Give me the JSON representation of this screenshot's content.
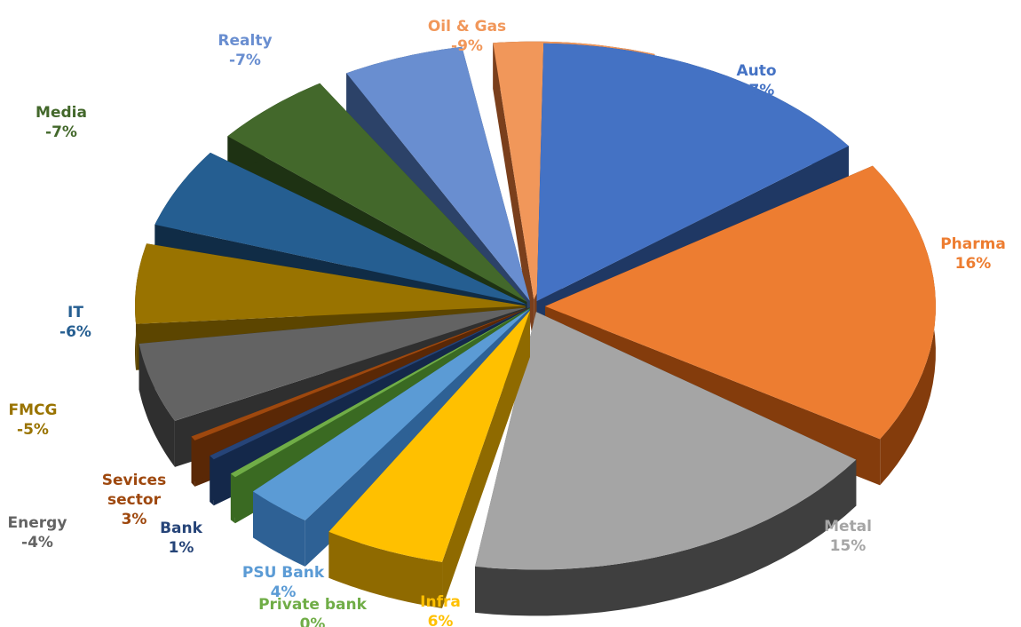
{
  "chart_data": {
    "type": "pie",
    "style": "3d-exploded",
    "slices": [
      {
        "name": "Auto",
        "value_label": "17%",
        "value": 17,
        "color": "#4472C4",
        "dark": "#1F3864"
      },
      {
        "name": "Pharma",
        "value_label": "16%",
        "value": 16,
        "color": "#ED7D31",
        "dark": "#843C0C"
      },
      {
        "name": "Metal",
        "value_label": "15%",
        "value": 15,
        "color": "#A5A5A5",
        "dark": "#3F3F3F"
      },
      {
        "name": "Infra",
        "value_label": "6%",
        "value": 6,
        "color": "#FFC000",
        "dark": "#8F6A00"
      },
      {
        "name": "PSU Bank",
        "value_label": "4%",
        "value": 4,
        "color": "#5B9BD5",
        "dark": "#2E6195"
      },
      {
        "name": "Private bank",
        "value_label": "0%",
        "value": 0,
        "color": "#70AD47",
        "dark": "#3A6A22"
      },
      {
        "name": "Bank",
        "value_label": "1%",
        "value": 1,
        "color": "#264478",
        "dark": "#14284A"
      },
      {
        "name": "Sevices sector",
        "value_label": "3%",
        "value": 3,
        "color": "#9E480E",
        "dark": "#5A2806"
      },
      {
        "name": "Energy",
        "value_label": "-4%",
        "value": -4,
        "color": "#636363",
        "dark": "#2F2F2F"
      },
      {
        "name": "FMCG",
        "value_label": "-5%",
        "value": -5,
        "color": "#997300",
        "dark": "#5C4500"
      },
      {
        "name": "IT",
        "value_label": "-6%",
        "value": -6,
        "color": "#255E91",
        "dark": "#102C46"
      },
      {
        "name": "Media",
        "value_label": "-7%",
        "value": -7,
        "color": "#43682B",
        "dark": "#1E3213"
      },
      {
        "name": "Realty",
        "value_label": "-7%",
        "value": -7,
        "color": "#698ED0",
        "dark": "#2C4268"
      },
      {
        "name": "Oil & Gas",
        "value_label": "-9%",
        "value": -9,
        "color": "#F1975A",
        "dark": "#7A3F1C"
      }
    ]
  }
}
